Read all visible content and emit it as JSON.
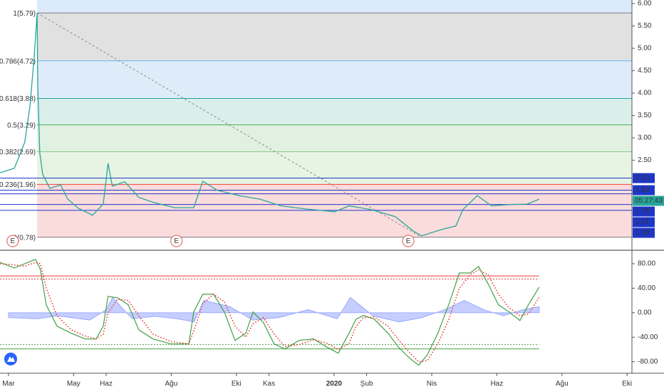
{
  "chart_data": [
    {
      "type": "line",
      "x": [
        -0.26,
        0.18,
        0.5,
        0.66,
        0.79,
        0.88,
        0.9,
        0.96,
        1.05,
        1.27,
        1.6,
        1.82,
        2.14,
        2.58,
        2.91,
        3.06,
        3.19,
        3.57,
        4.0,
        4.44,
        5.1,
        5.69,
        5.97,
        6.41,
        7.07,
        7.72,
        8.38,
        9.15,
        10.02,
        10.46,
        11.12,
        11.88,
        12.43,
        12.69,
        13.3,
        13.74,
        13.96,
        14.4,
        14.84,
        15.38,
        15.93,
        16.3
      ],
      "values": [
        2.22,
        2.32,
        2.9,
        3.7,
        4.81,
        5.79,
        4.17,
        2.67,
        2.19,
        1.87,
        1.95,
        1.63,
        1.43,
        1.27,
        1.52,
        2.43,
        1.92,
        2.02,
        1.67,
        1.56,
        1.44,
        1.44,
        2.03,
        1.83,
        1.71,
        1.63,
        1.48,
        1.41,
        1.35,
        1.48,
        1.4,
        1.24,
        0.92,
        0.81,
        0.95,
        1.03,
        1.4,
        1.71,
        1.48,
        1.51,
        1.52,
        1.63
      ],
      "color": "#26a69a",
      "xlim": [
        -0.26,
        19.15
      ],
      "ylim": [
        0.52,
        6.08
      ],
      "xticks": [
        {
          "value": 0,
          "label": "Mar"
        },
        {
          "value": 2,
          "label": "May"
        },
        {
          "value": 3,
          "label": "Haz"
        },
        {
          "value": 5,
          "label": "Ağu"
        },
        {
          "value": 7,
          "label": "Eki"
        },
        {
          "value": 8,
          "label": "Kas"
        },
        {
          "value": 10,
          "label": "2020"
        },
        {
          "value": 11,
          "label": "Şub"
        },
        {
          "value": 13,
          "label": "Nis"
        },
        {
          "value": 15,
          "label": "Haz"
        },
        {
          "value": 17,
          "label": "Ağu"
        },
        {
          "value": 19,
          "label": "Eki"
        }
      ],
      "yticks": [
        {
          "value": 6,
          "label": "6.00"
        },
        {
          "value": 5.5,
          "label": "5.50"
        },
        {
          "value": 5,
          "label": "5.00"
        },
        {
          "value": 4.5,
          "label": "4.50"
        },
        {
          "value": 4,
          "label": "4.00"
        },
        {
          "value": 3.5,
          "label": "3.50"
        },
        {
          "value": 3,
          "label": "3.00"
        },
        {
          "value": 2.5,
          "label": "2.50"
        }
      ],
      "fib": [
        {
          "value": 5.79,
          "label": "1(5.79)",
          "color": "#787b86",
          "fill": "#dcdcdc"
        },
        {
          "value": 4.72,
          "label": "0.786(4.72)",
          "color": "#64b5f6",
          "fill": "#d8e9f8"
        },
        {
          "value": 3.88,
          "label": "0.618(3.88)",
          "color": "#26a69a",
          "fill": "#d4ece6"
        },
        {
          "value": 3.29,
          "label": "0.5(3.29)",
          "color": "#4caf50",
          "fill": "#dcefdc"
        },
        {
          "value": 2.69,
          "label": "0.382(2.69)",
          "color": "#81c784",
          "fill": "#e3f2de"
        },
        {
          "value": 1.96,
          "label": "0.236(1.96)",
          "color": "#f44336",
          "fill": "#fad6d6"
        },
        {
          "value": 0.78,
          "label": "0(0.78)",
          "color": "#787b86"
        }
      ],
      "levels": [
        {
          "value": 2.1,
          "label": "2.10",
          "color": "#1e36c8"
        },
        {
          "value": 1.83,
          "label": "1.83",
          "color": "#1e36c8"
        },
        {
          "value": 1.75,
          "label": "1.75",
          "color": "#1e36c8"
        },
        {
          "value": 1.51,
          "label": "1.51",
          "color": "#1e36c8"
        },
        {
          "value": 1.38,
          "label": "1.38",
          "color": "#1e36c8"
        }
      ],
      "timer": "05:27:43",
      "events": [
        {
          "x": 0.13,
          "label": "E"
        },
        {
          "x": 5.16,
          "label": "E"
        },
        {
          "x": 12.28,
          "label": "E"
        }
      ]
    },
    {
      "type": "line",
      "ylim": [
        -93,
        98.5
      ],
      "yticks": [
        {
          "value": 80,
          "label": "80.00"
        },
        {
          "value": 40,
          "label": "40.00"
        },
        {
          "value": 0,
          "label": "0.00"
        },
        {
          "value": -40,
          "label": "-40.00"
        },
        {
          "value": -80,
          "label": "-80.00"
        }
      ],
      "hlines": [
        {
          "value": 60,
          "color": "#e53935"
        },
        {
          "value": 55,
          "color": "#e53935",
          "dashed": true
        },
        {
          "value": -52,
          "color": "#43a047",
          "dashed": true
        },
        {
          "value": -59,
          "color": "#43a047"
        }
      ],
      "series": [
        {
          "color": "#8c9eff",
          "area": true,
          "x": [
            0,
            0.9,
            1.5,
            2.5,
            3.0,
            3.2,
            3.8,
            4.5,
            5.2,
            5.7,
            6.0,
            6.8,
            7.5,
            8.3,
            9.2,
            10.1,
            10.5,
            11.2,
            12.0,
            12.7,
            13.4,
            14.0,
            14.6,
            15.2,
            15.8,
            16.3
          ],
          "values": [
            -8,
            -10,
            -5,
            -12,
            5,
            25,
            -10,
            -6,
            -10,
            -15,
            20,
            10,
            -12,
            -8,
            5,
            -10,
            25,
            -5,
            -15,
            -8,
            5,
            20,
            5,
            -5,
            5,
            10
          ]
        },
        {
          "color": "#43a047",
          "x": [
            -0.26,
            0.18,
            0.5,
            0.83,
            0.98,
            1.16,
            1.49,
            1.93,
            2.36,
            2.69,
            2.91,
            3.06,
            3.35,
            3.68,
            4.0,
            4.44,
            4.99,
            5.54,
            5.69,
            5.97,
            6.3,
            6.63,
            6.96,
            7.29,
            7.51,
            7.83,
            8.16,
            8.49,
            8.93,
            9.37,
            9.8,
            10.13,
            10.46,
            10.68,
            10.9,
            11.23,
            11.66,
            11.99,
            12.32,
            12.6,
            12.87,
            13.19,
            13.52,
            13.85,
            14.18,
            14.44,
            14.73,
            15.05,
            15.38,
            15.71,
            15.97,
            16.3
          ],
          "values": [
            82.3,
            73,
            80,
            87,
            70.7,
            12.8,
            -22,
            -33.6,
            -42.9,
            -42.9,
            -22,
            26.7,
            24.3,
            12.8,
            -27.8,
            -42.9,
            -51,
            -51,
            1.2,
            30.1,
            30.1,
            1.2,
            -45.2,
            -33.6,
            1.2,
            -16.2,
            -51,
            -59.1,
            -45.2,
            -42.9,
            -56.8,
            -66.1,
            -33.6,
            -10.4,
            -4.6,
            -10.4,
            -33.6,
            -56.8,
            -74.2,
            -85.8,
            -68.4,
            -33.6,
            12.8,
            64.9,
            64.9,
            75.4,
            47.5,
            12.8,
            1.2,
            -12.8,
            12.8,
            41.7
          ]
        },
        {
          "color": "#e53935",
          "dashed": true,
          "x": [
            -0.26,
            0.18,
            0.5,
            0.83,
            0.98,
            1.16,
            1.49,
            1.93,
            2.36,
            2.69,
            2.91,
            3.06,
            3.35,
            3.68,
            4.0,
            4.44,
            4.99,
            5.54,
            5.69,
            5.97,
            6.3,
            6.63,
            6.96,
            7.29,
            7.51,
            7.83,
            8.16,
            8.49,
            8.93,
            9.37,
            9.8,
            10.13,
            10.46,
            10.68,
            10.9,
            11.23,
            11.66,
            11.99,
            12.32,
            12.6,
            12.87,
            13.19,
            13.52,
            13.85,
            14.18,
            14.44,
            14.73,
            15.05,
            15.38,
            15.71,
            15.97,
            16.3
          ],
          "values": [
            80,
            78,
            76,
            82,
            80,
            40,
            -5,
            -28,
            -38,
            -43,
            -35,
            0,
            22,
            20,
            -5,
            -35,
            -47,
            -51,
            -30,
            15,
            30,
            18,
            -22,
            -40,
            -18,
            -8,
            -35,
            -55,
            -52,
            -44,
            -50,
            -60,
            -50,
            -22,
            -8,
            -7,
            -22,
            -45,
            -65,
            -80,
            -78,
            -50,
            -12,
            40,
            62,
            70,
            62,
            30,
            8,
            -5,
            -2,
            25
          ]
        }
      ]
    }
  ]
}
